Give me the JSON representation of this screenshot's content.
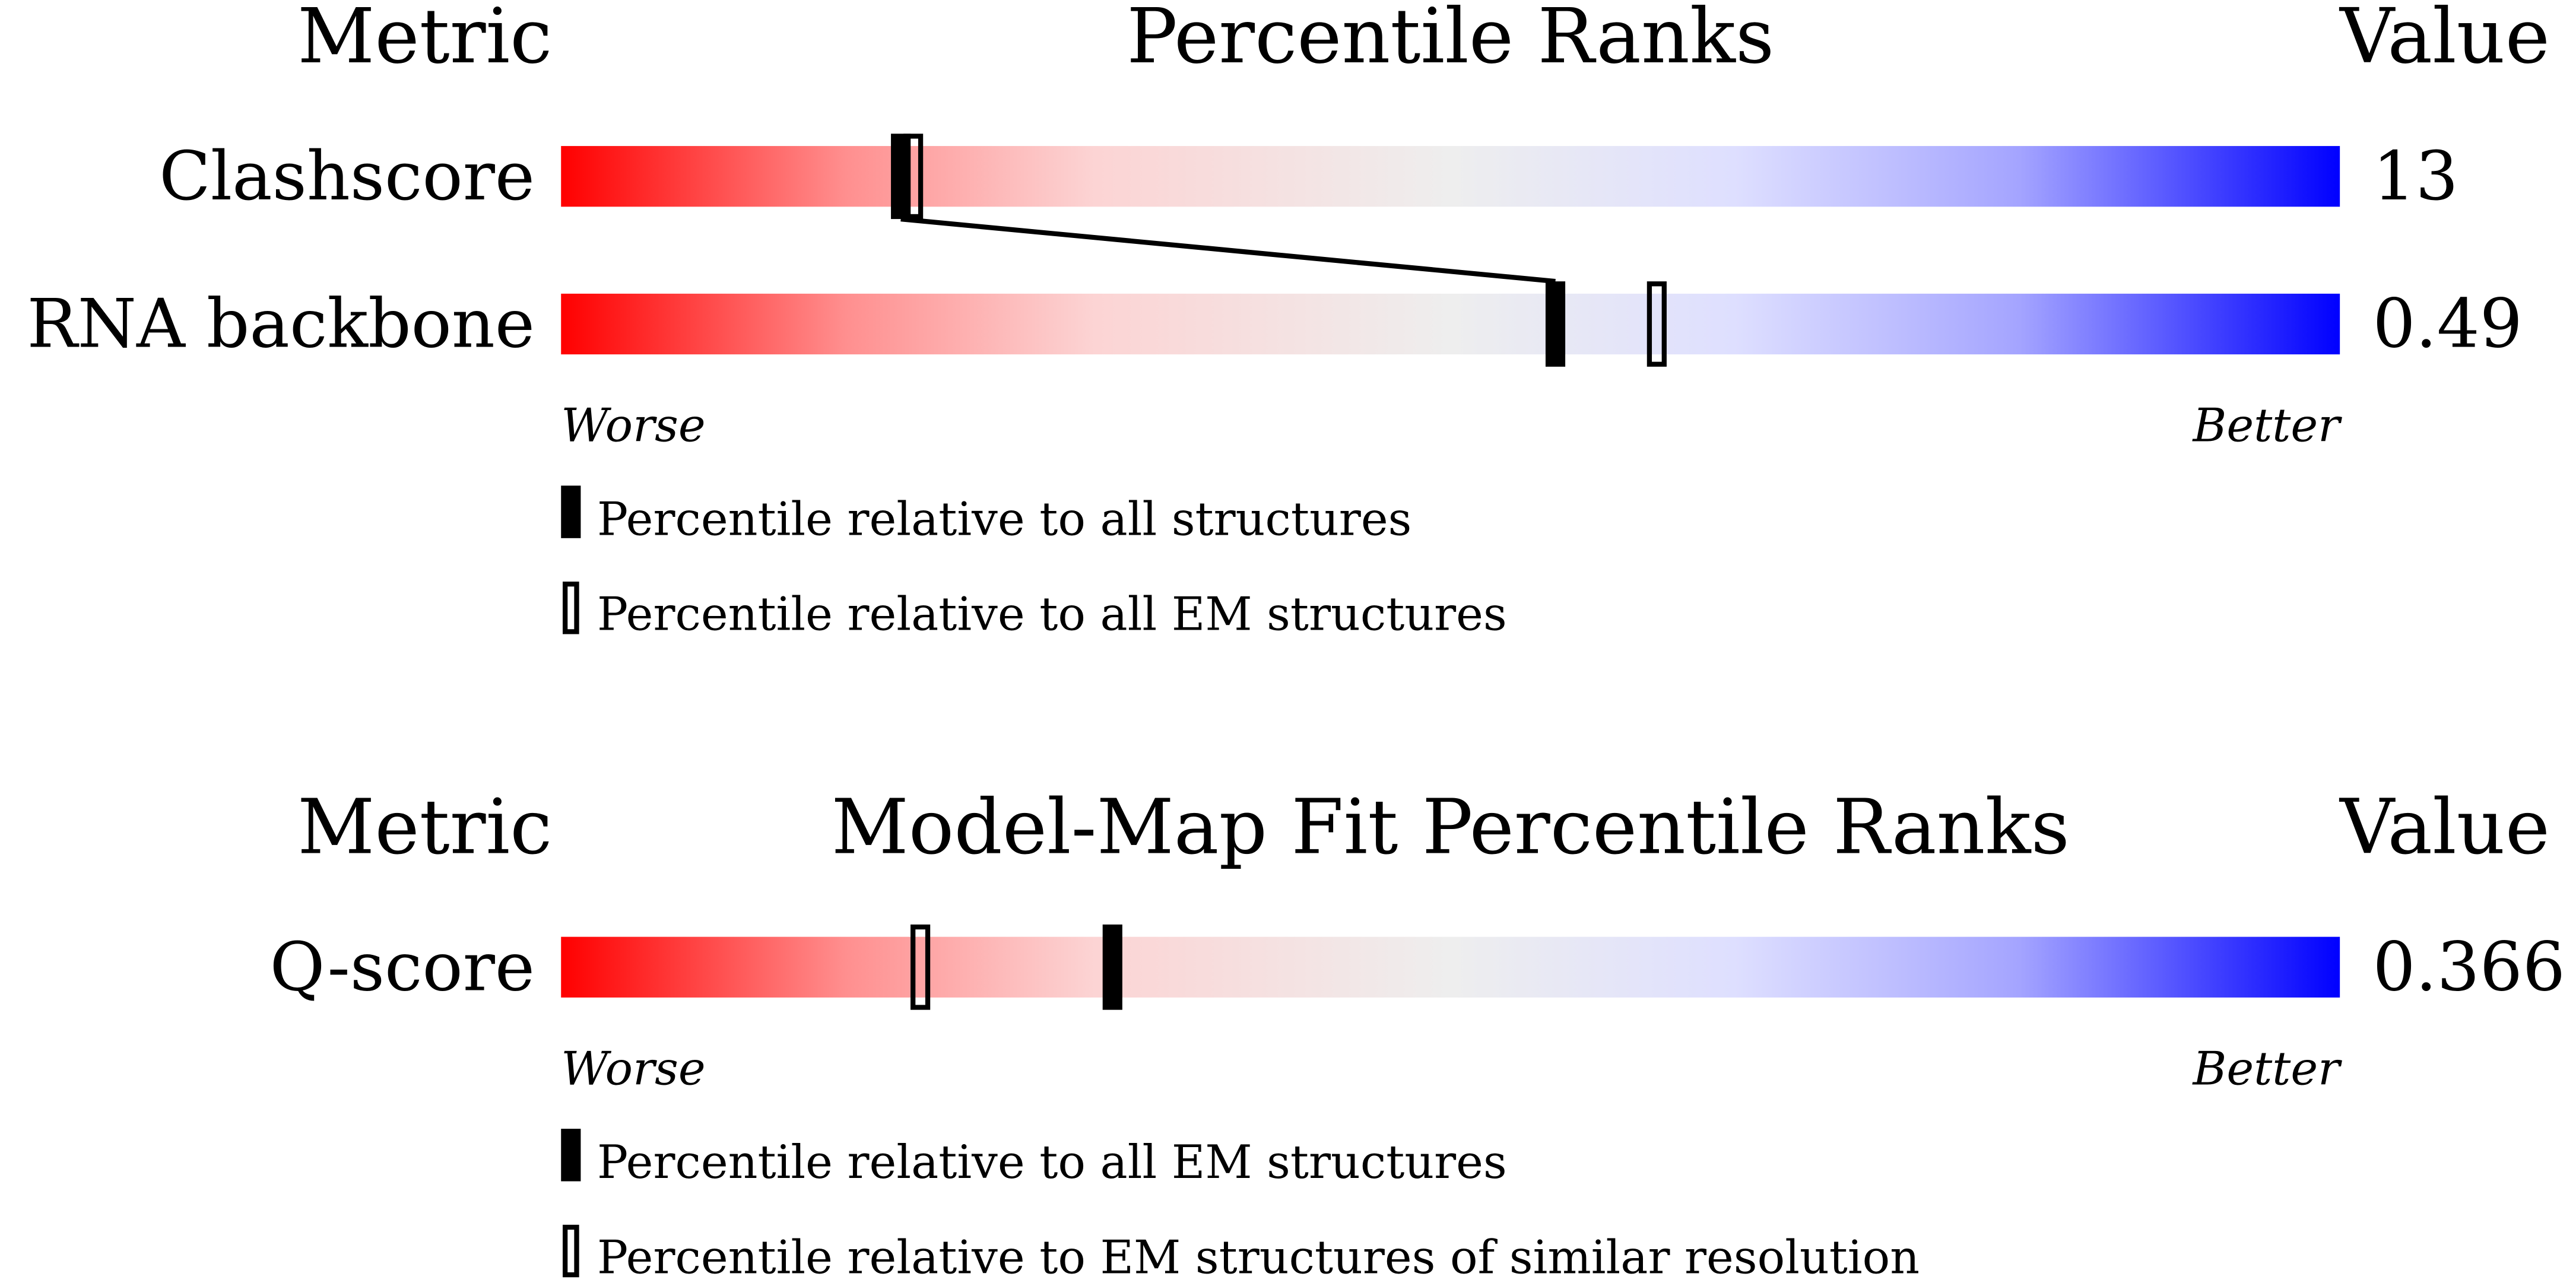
{
  "chart_data": [
    {
      "type": "percentile_slider",
      "metric_header": "Metric",
      "title": "Percentile Ranks",
      "value_header": "Value",
      "categories": [
        "Clashscore",
        "RNA backbone"
      ],
      "values": [
        13,
        0.49
      ],
      "xlim": [
        0,
        100
      ],
      "worse_label": "Worse",
      "better_label": "Better",
      "connect": true,
      "series": [
        {
          "name": "Percentile relative to all structures",
          "style": "filled",
          "color": "#000000",
          "values": [
            19.1,
            55.9
          ]
        },
        {
          "name": "Percentile relative to all EM structures",
          "style": "open",
          "color": "#000000",
          "values": [
            19.8,
            61.6
          ]
        }
      ]
    },
    {
      "type": "percentile_slider",
      "metric_header": "Metric",
      "title": "Model-Map Fit Percentile Ranks",
      "value_header": "Value",
      "categories": [
        "Q-score"
      ],
      "values": [
        0.366
      ],
      "xlim": [
        0,
        100
      ],
      "worse_label": "Worse",
      "better_label": "Better",
      "connect": false,
      "series": [
        {
          "name": "Percentile relative to all EM structures",
          "style": "filled",
          "color": "#000000",
          "values": [
            31.0
          ]
        },
        {
          "name": "Percentile relative to EM structures of similar resolution",
          "style": "open",
          "color": "#000000",
          "values": [
            20.2
          ]
        }
      ]
    }
  ]
}
